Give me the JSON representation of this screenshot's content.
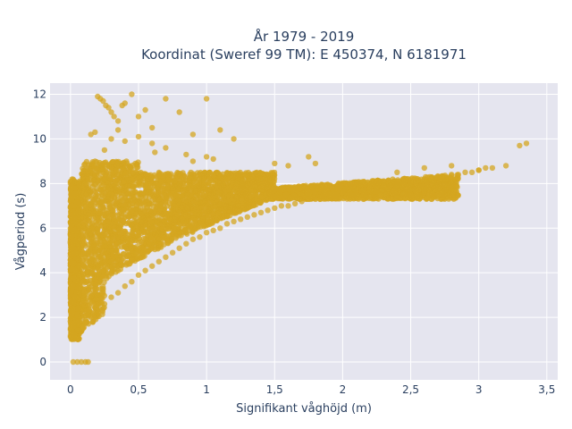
{
  "chart_data": {
    "type": "scatter",
    "title_line1": "År 1979 - 2019",
    "title_line2": "Koordinat (Sweref 99 TM): E 450374, N 6181971",
    "xlabel": "Signifikant våghöjd (m)",
    "ylabel": "Vågperiod (s)",
    "xlim": [
      -0.15,
      3.58
    ],
    "ylim": [
      -0.8,
      12.5
    ],
    "x_ticks": [
      0,
      0.5,
      1,
      1.5,
      2,
      2.5,
      3,
      3.5
    ],
    "x_tick_labels": [
      "0",
      "0,5",
      "1",
      "1,5",
      "2",
      "2,5",
      "3",
      "3,5"
    ],
    "y_ticks": [
      0,
      2,
      4,
      6,
      8,
      10,
      12
    ],
    "y_tick_labels": [
      "0",
      "2",
      "4",
      "6",
      "8",
      "10",
      "12"
    ],
    "grid": true,
    "legend": "none",
    "marker_color": "#d4a520",
    "plot_bg": "#e5e5ef",
    "series": [
      {
        "x": [
          0.02,
          0.05,
          0.08,
          0.11,
          0.13,
          0.03,
          0.06,
          0.09,
          0.12,
          0.15,
          0.18,
          0.21,
          0.25,
          0.3,
          0.35,
          0.4,
          0.45,
          0.5,
          0.55,
          0.6,
          0.65,
          0.7,
          0.75,
          0.8,
          0.85,
          0.9,
          0.95,
          1.0,
          1.05,
          1.1,
          1.15,
          1.2,
          1.25,
          1.3,
          1.35,
          1.4,
          1.45,
          1.5,
          1.55,
          1.6,
          1.65,
          1.7,
          1.75,
          1.8,
          1.85,
          1.9,
          1.95,
          2.0,
          2.05,
          2.1,
          2.15,
          2.2,
          2.25,
          2.3,
          2.35,
          2.4,
          2.45,
          2.5,
          2.55,
          2.6,
          2.65,
          2.7,
          2.75,
          2.8,
          2.85,
          2.9,
          2.95,
          3.0,
          3.05,
          3.1,
          3.2,
          3.3,
          3.35,
          0.2,
          0.22,
          0.24,
          0.26,
          0.28,
          0.3,
          0.32,
          0.35,
          0.38,
          0.4,
          0.45,
          0.5,
          0.55,
          0.6,
          0.7,
          0.8,
          0.9,
          1.0,
          1.1,
          1.2,
          0.25,
          0.3,
          0.35,
          0.15,
          0.18,
          0.6,
          0.5,
          0.4,
          0.7,
          0.62,
          0.9,
          1.0,
          1.05,
          0.85,
          1.5,
          1.6,
          1.75,
          1.8,
          2.4,
          2.6,
          2.8,
          3.0
        ],
        "y": [
          0.0,
          0.0,
          0.0,
          0.0,
          0.0,
          1.2,
          1.4,
          1.6,
          1.8,
          2.0,
          2.2,
          2.4,
          2.6,
          2.9,
          3.1,
          3.4,
          3.6,
          3.9,
          4.1,
          4.3,
          4.5,
          4.7,
          4.9,
          5.1,
          5.3,
          5.5,
          5.6,
          5.8,
          5.9,
          6.0,
          6.2,
          6.3,
          6.4,
          6.5,
          6.6,
          6.7,
          6.8,
          6.9,
          7.0,
          7.0,
          7.1,
          7.2,
          7.3,
          7.3,
          7.4,
          7.5,
          7.5,
          7.6,
          7.6,
          7.7,
          7.7,
          7.8,
          7.8,
          7.9,
          7.9,
          8.0,
          8.0,
          8.1,
          8.1,
          8.2,
          8.2,
          8.3,
          8.3,
          8.4,
          8.4,
          8.5,
          8.5,
          8.6,
          8.7,
          8.7,
          8.8,
          9.7,
          9.8,
          11.9,
          11.8,
          11.7,
          11.5,
          11.4,
          11.2,
          11.0,
          10.8,
          11.5,
          11.6,
          12.0,
          11.0,
          11.3,
          10.5,
          11.8,
          11.2,
          10.2,
          11.8,
          10.4,
          10.0,
          9.5,
          10.0,
          10.4,
          10.2,
          10.3,
          9.8,
          10.1,
          9.9,
          9.6,
          9.4,
          9.0,
          9.2,
          9.1,
          9.3,
          8.9,
          8.8,
          9.2,
          8.9,
          8.5,
          8.7,
          8.8,
          8.6
        ]
      }
    ]
  }
}
